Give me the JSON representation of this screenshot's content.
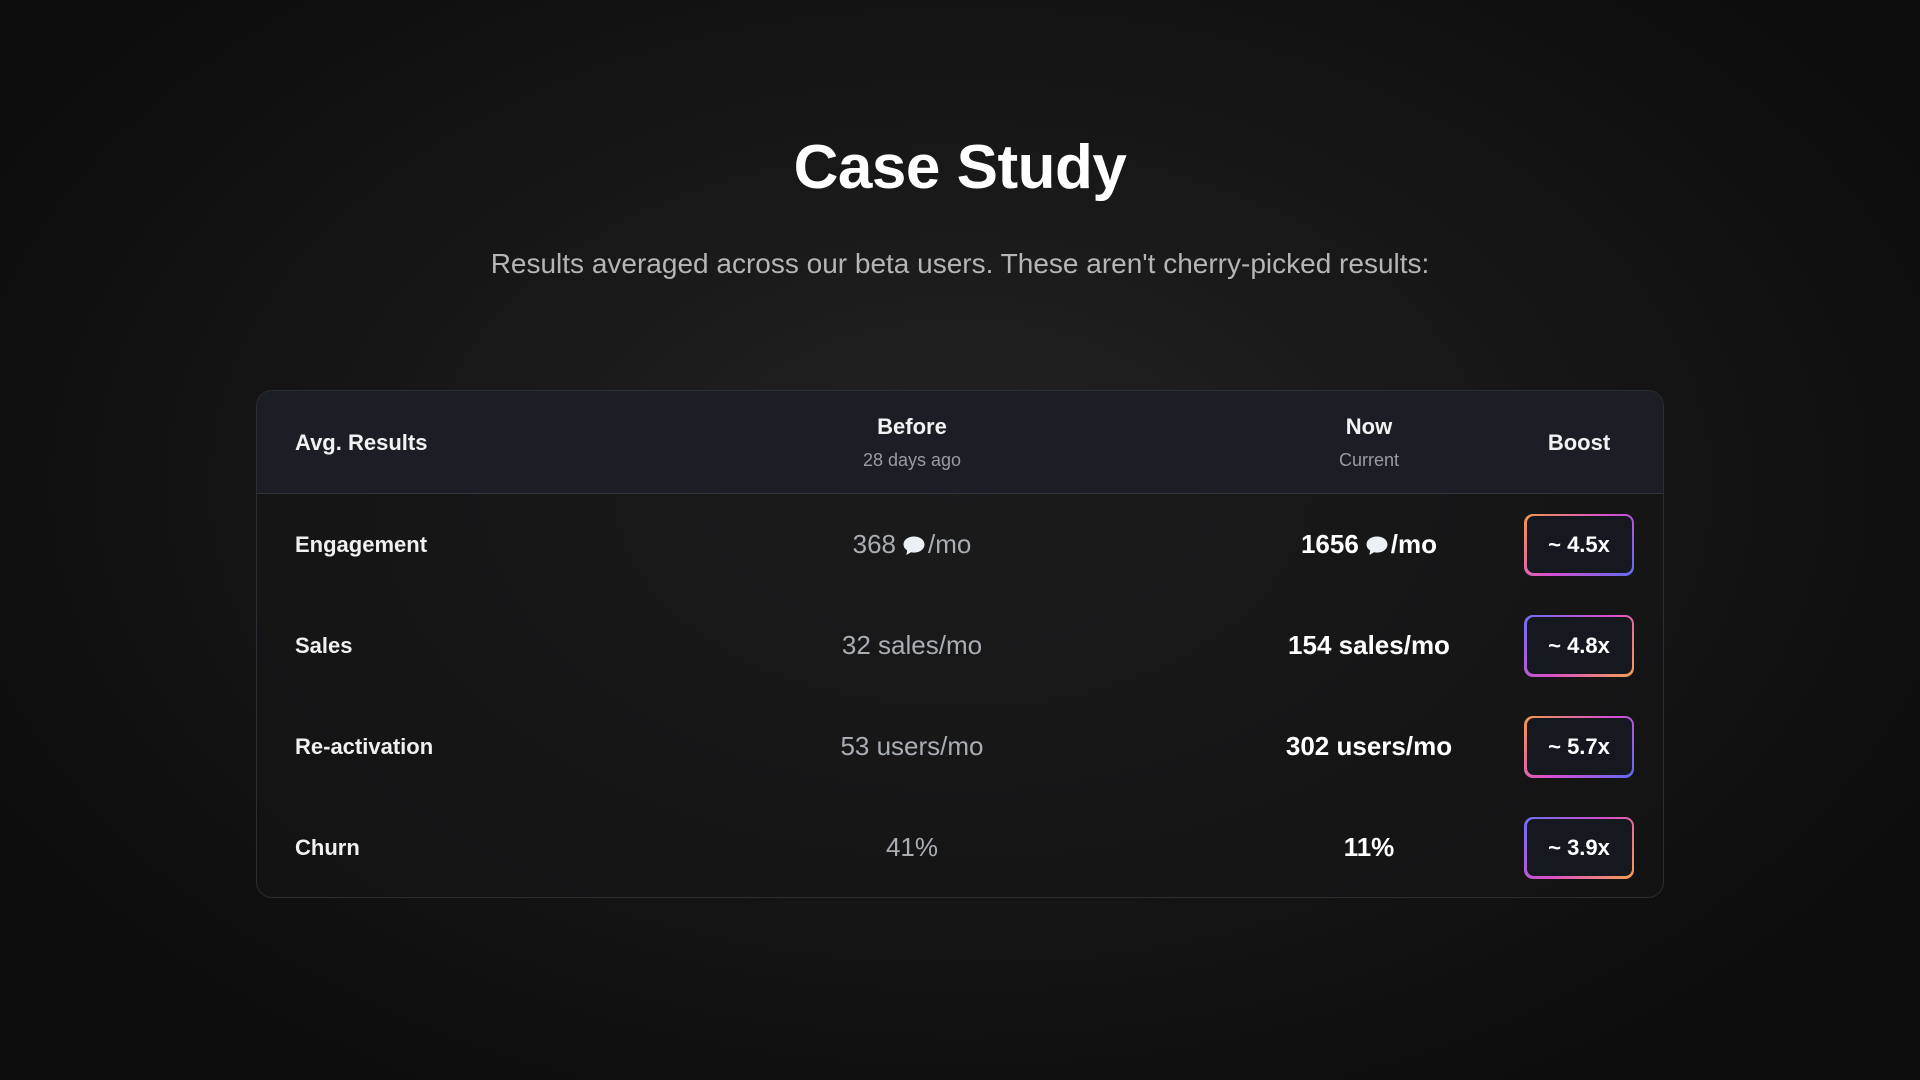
{
  "title": "Case Study",
  "subtitle": "Results averaged across our beta users. These aren't cherry-picked results:",
  "table": {
    "headers": {
      "metric": "Avg. Results",
      "before": "Before",
      "before_sub": "28 days ago",
      "now": "Now",
      "now_sub": "Current",
      "boost": "Boost"
    },
    "rows": [
      {
        "metric": "Engagement",
        "before_num": "368",
        "before_unit": "/mo",
        "now_num": "1656",
        "now_unit": "/mo",
        "icon": "chat-bubble-icon",
        "boost": "~ 4.5x"
      },
      {
        "metric": "Sales",
        "before": "32 sales/mo",
        "now": "154 sales/mo",
        "boost": "~ 4.8x"
      },
      {
        "metric": "Re-activation",
        "before": "53 users/mo",
        "now": "302 users/mo",
        "boost": "~ 5.7x"
      },
      {
        "metric": "Churn",
        "before": "41%",
        "now": "11%",
        "boost": "~ 3.9x"
      }
    ]
  },
  "colors": {
    "background": "#121212",
    "header_bg": "#1b1e24",
    "badge_gradient": [
      "#f39a4a",
      "#d74fd0",
      "#5f6cf0"
    ]
  }
}
